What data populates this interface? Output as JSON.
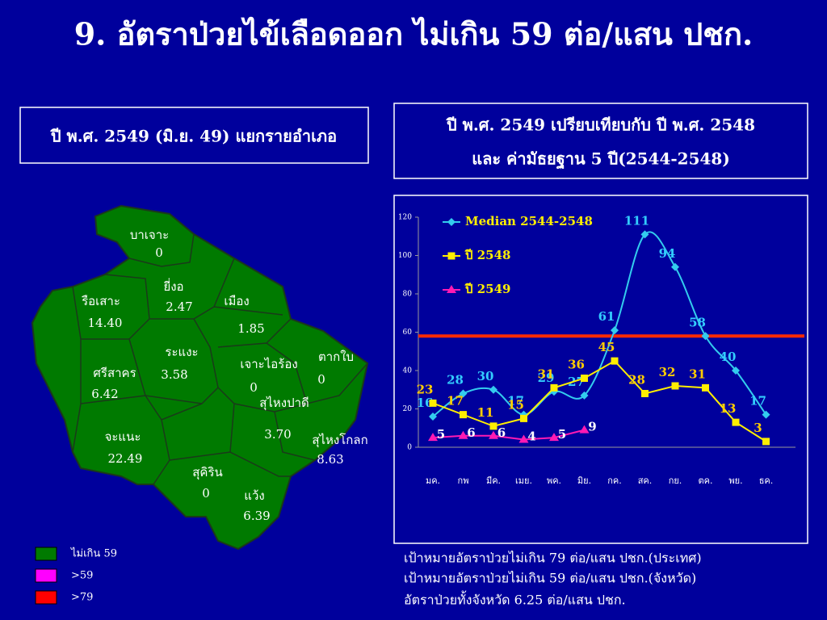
{
  "title": "9. อัตราป่วยไข้เลือดออก ไม่เกิน 59 ต่อ/แสน ปชก.",
  "map": {
    "heading": "ปี พ.ศ. 2549 (มิ.ย. 49) แยกรายอำเภอ",
    "districts": [
      {
        "name": "บาเจาะ",
        "value": "0"
      },
      {
        "name": "ยี่งอ",
        "value": "2.47"
      },
      {
        "name": "รือเสาะ",
        "value": "14.40"
      },
      {
        "name": "เมือง",
        "value": "1.85"
      },
      {
        "name": "ระแงะ",
        "value": "3.58"
      },
      {
        "name": "เจาะไอร้อง",
        "value": "0"
      },
      {
        "name": "ตากใบ",
        "value": "0"
      },
      {
        "name": "ศรีสาคร",
        "value": "6.42"
      },
      {
        "name": "สุไหงปาดี",
        "value": "3.70"
      },
      {
        "name": "จะแนะ",
        "value": "22.49"
      },
      {
        "name": "สุไหงโกลก",
        "value": "8.63"
      },
      {
        "name": "สุคิริน",
        "value": "0"
      },
      {
        "name": "แว้ง",
        "value": "6.39"
      }
    ],
    "legend": [
      {
        "label": "ไม่เกิน 59",
        "color": "#007a00"
      },
      {
        "label": ">59",
        "color": "#ff00ff"
      },
      {
        "label": ">79",
        "color": "#ff0000"
      }
    ]
  },
  "chart_heading": [
    "ปี พ.ศ. 2549 เปรียบเทียบกับ ปี พ.ศ. 2548",
    "และ ค่ามัธยฐาน 5 ปี(2544-2548)"
  ],
  "chart_data": {
    "type": "line",
    "categories": [
      "มค.",
      "กพ",
      "มีค.",
      "เมย.",
      "พค.",
      "มิย.",
      "กค.",
      "สค.",
      "กย.",
      "ตค.",
      "พย.",
      "ธค."
    ],
    "series": [
      {
        "name": "Median 2544-2548",
        "color": "#33ccee",
        "marker": "diamond",
        "label_color": "#33ccff",
        "smooth": true,
        "values": [
          16,
          28,
          30,
          17,
          29,
          27,
          61,
          111,
          94,
          58,
          40,
          17
        ]
      },
      {
        "name": "ปี 2548",
        "color": "#ffee00",
        "marker": "square",
        "label_color": "#ffcc00",
        "smooth": false,
        "values": [
          23,
          17,
          11,
          15,
          31,
          36,
          45,
          28,
          32,
          31,
          13,
          3
        ]
      },
      {
        "name": "ปี 2549",
        "color": "#ff1ab3",
        "marker": "triangle",
        "label_color": "#ffffff",
        "smooth": false,
        "values": [
          5,
          6,
          6,
          4,
          5,
          9,
          null,
          null,
          null,
          null,
          null,
          null
        ]
      }
    ],
    "ylim": [
      0,
      120
    ],
    "yticks": [
      0,
      20,
      40,
      60,
      80,
      100,
      120
    ],
    "target_line": {
      "value": 58,
      "color": "#ff2a00"
    },
    "legend": "top-left",
    "data_labels": true
  },
  "notes": [
    "เป้าหมายอัตราป่วยไม่เกิน 79 ต่อ/แสน ปชก.(ประเทศ)",
    "เป้าหมายอัตราป่วยไม่เกิน 59 ต่อ/แสน ปชก.(จังหวัด)",
    "อัตราป่วยทั้งจังหวัด 6.25 ต่อ/แสน ปชก."
  ]
}
